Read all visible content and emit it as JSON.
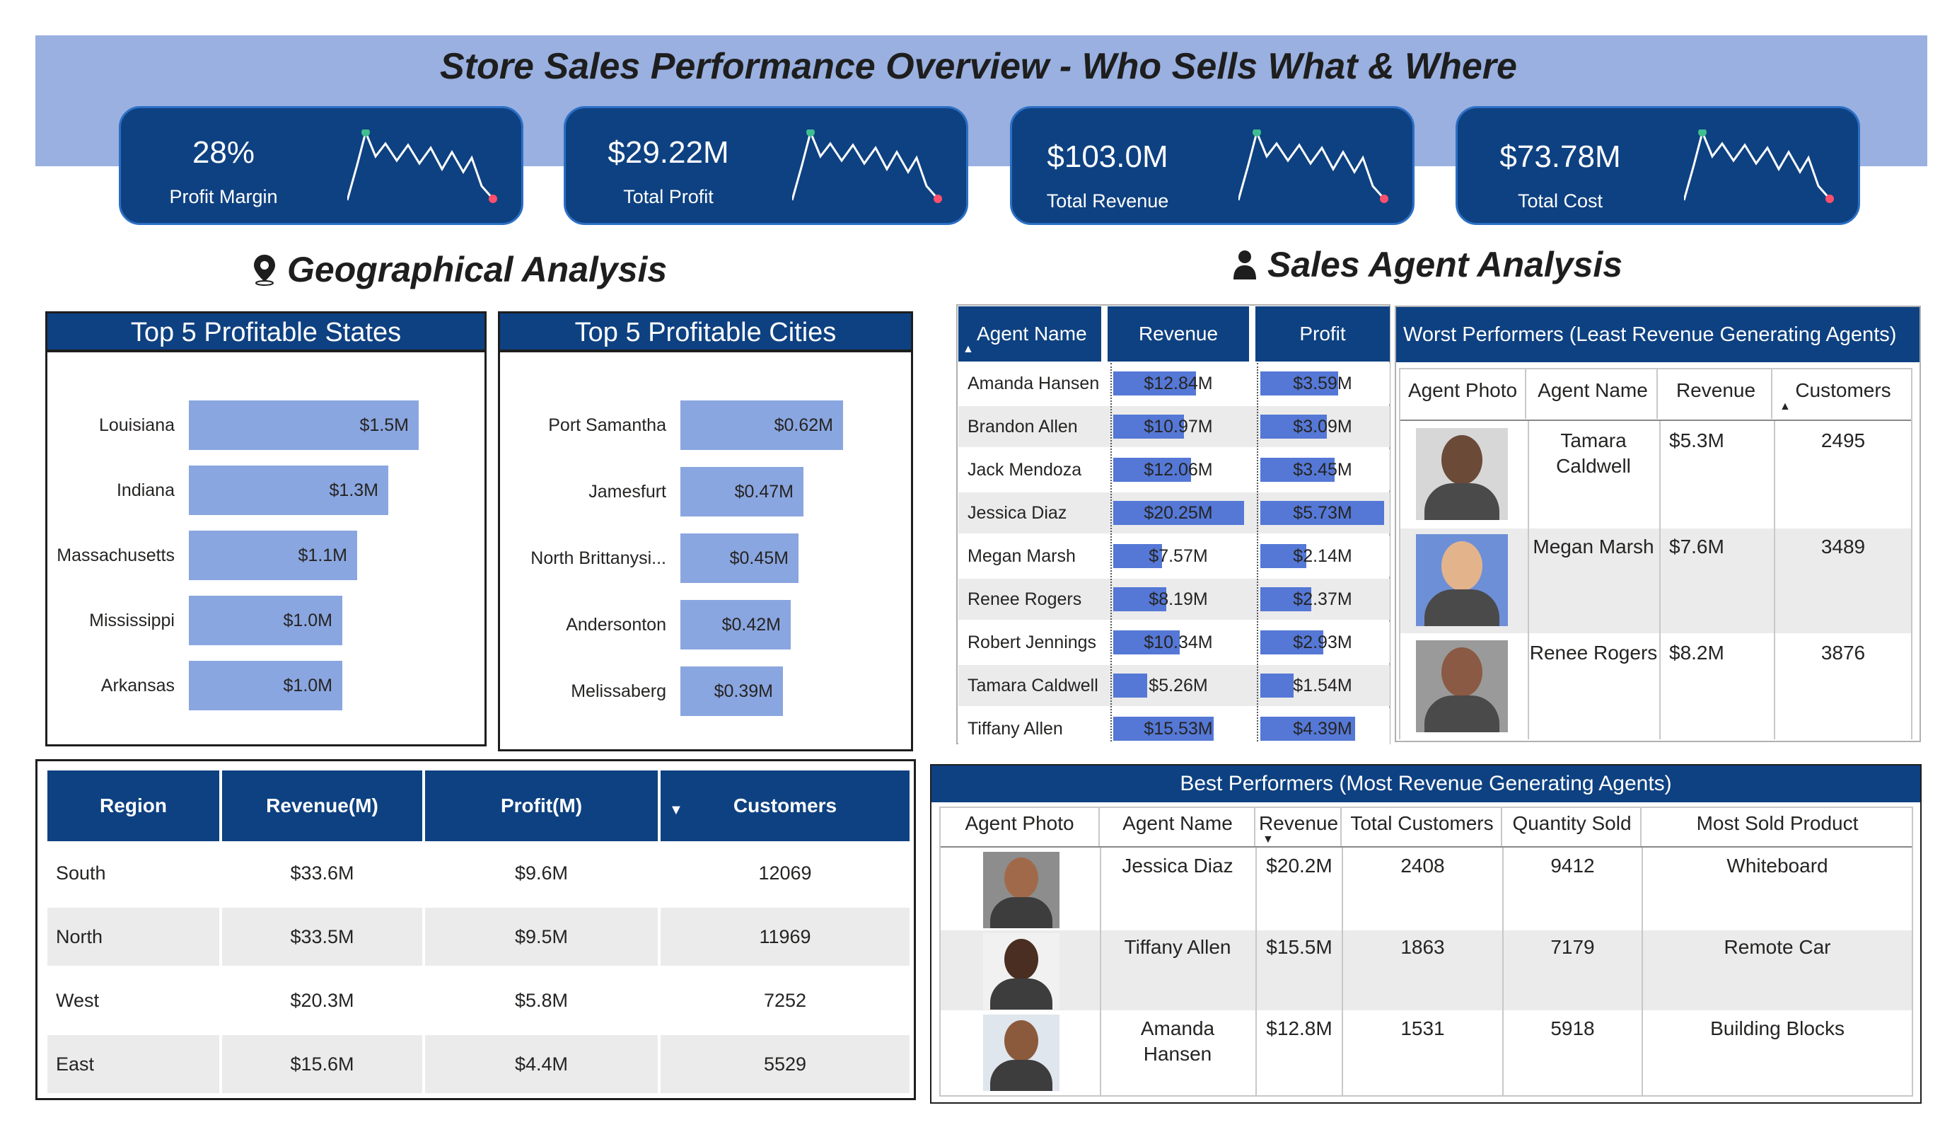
{
  "title": "Store Sales Performance Overview - Who Sells What & Where",
  "kpis": [
    {
      "value": "28%",
      "label": "Profit Margin"
    },
    {
      "value": "$29.22M",
      "label": "Total Profit"
    },
    {
      "value": "$103.0M",
      "label": "Total Revenue"
    },
    {
      "value": "$73.78M",
      "label": "Total Cost"
    }
  ],
  "geo_title": "Geographical Analysis",
  "agent_title": "Sales Agent Analysis",
  "states": {
    "title": "Top 5 Profitable States",
    "items": [
      {
        "label": "Louisiana",
        "value": 1.5,
        "text": "$1.5M"
      },
      {
        "label": "Indiana",
        "value": 1.3,
        "text": "$1.3M"
      },
      {
        "label": "Massachusetts",
        "value": 1.1,
        "text": "$1.1M"
      },
      {
        "label": "Mississippi",
        "value": 1.0,
        "text": "$1.0M"
      },
      {
        "label": "Arkansas",
        "value": 1.0,
        "text": "$1.0M"
      }
    ]
  },
  "cities": {
    "title": "Top 5 Profitable Cities",
    "items": [
      {
        "label": "Port Samantha",
        "value": 0.62,
        "text": "$0.62M"
      },
      {
        "label": "Jamesfurt",
        "value": 0.47,
        "text": "$0.47M"
      },
      {
        "label": "North Brittanysi...",
        "value": 0.45,
        "text": "$0.45M"
      },
      {
        "label": "Andersonton",
        "value": 0.42,
        "text": "$0.42M"
      },
      {
        "label": "Melissaberg",
        "value": 0.39,
        "text": "$0.39M"
      }
    ]
  },
  "region_table": {
    "headers": [
      "Region",
      "Revenue(M)",
      "Profit(M)",
      "Customers"
    ],
    "rows": [
      [
        "South",
        "$33.6M",
        "$9.6M",
        "12069"
      ],
      [
        "North",
        "$33.5M",
        "$9.5M",
        "11969"
      ],
      [
        "West",
        "$20.3M",
        "$5.8M",
        "7252"
      ],
      [
        "East",
        "$15.6M",
        "$4.4M",
        "5529"
      ]
    ]
  },
  "agent_table": {
    "headers": [
      "Agent Name",
      "Revenue",
      "Profit"
    ],
    "rows": [
      {
        "name": "Amanda Hansen",
        "revenue": 12.84,
        "revenue_text": "$12.84M",
        "profit": 3.59,
        "profit_text": "$3.59M"
      },
      {
        "name": "Brandon Allen",
        "revenue": 10.97,
        "revenue_text": "$10.97M",
        "profit": 3.09,
        "profit_text": "$3.09M"
      },
      {
        "name": "Jack Mendoza",
        "revenue": 12.06,
        "revenue_text": "$12.06M",
        "profit": 3.45,
        "profit_text": "$3.45M"
      },
      {
        "name": "Jessica Diaz",
        "revenue": 20.25,
        "revenue_text": "$20.25M",
        "profit": 5.73,
        "profit_text": "$5.73M"
      },
      {
        "name": "Megan Marsh",
        "revenue": 7.57,
        "revenue_text": "$7.57M",
        "profit": 2.14,
        "profit_text": "$2.14M"
      },
      {
        "name": "Renee Rogers",
        "revenue": 8.19,
        "revenue_text": "$8.19M",
        "profit": 2.37,
        "profit_text": "$2.37M"
      },
      {
        "name": "Robert Jennings",
        "revenue": 10.34,
        "revenue_text": "$10.34M",
        "profit": 2.93,
        "profit_text": "$2.93M"
      },
      {
        "name": "Tamara Caldwell",
        "revenue": 5.26,
        "revenue_text": "$5.26M",
        "profit": 1.54,
        "profit_text": "$1.54M"
      },
      {
        "name": "Tiffany Allen",
        "revenue": 15.53,
        "revenue_text": "$15.53M",
        "profit": 4.39,
        "profit_text": "$4.39M"
      }
    ]
  },
  "worst": {
    "title": "Worst Performers (Least Revenue Generating Agents)",
    "headers": [
      "Agent Photo",
      "Agent Name",
      "Revenue",
      "Customers"
    ],
    "rows": [
      {
        "name": "Tamara Caldwell",
        "revenue": "$5.3M",
        "customers": "2495"
      },
      {
        "name": "Megan Marsh",
        "revenue": "$7.6M",
        "customers": "3489"
      },
      {
        "name": "Renee Rogers",
        "revenue": "$8.2M",
        "customers": "3876"
      }
    ]
  },
  "best": {
    "title": "Best Performers (Most Revenue Generating Agents)",
    "headers": [
      "Agent Photo",
      "Agent Name",
      "Revenue",
      "Total Customers",
      "Quantity Sold",
      "Most Sold Product"
    ],
    "rows": [
      {
        "name": "Jessica Diaz",
        "revenue": "$20.2M",
        "customers": "2408",
        "quantity": "9412",
        "product": "Whiteboard"
      },
      {
        "name": "Tiffany Allen",
        "revenue": "$15.5M",
        "customers": "1863",
        "quantity": "7179",
        "product": "Remote Car"
      },
      {
        "name": "Amanda Hansen",
        "revenue": "$12.8M",
        "customers": "1531",
        "quantity": "5918",
        "product": "Building Blocks"
      }
    ]
  },
  "colors": {
    "navy": "#0e4181",
    "band": "#99b0e0",
    "bar": "#8aa6e0",
    "agent_bar": "#5578d6",
    "spark_start": "#3fbf8f",
    "spark_end": "#ff4f6d"
  }
}
